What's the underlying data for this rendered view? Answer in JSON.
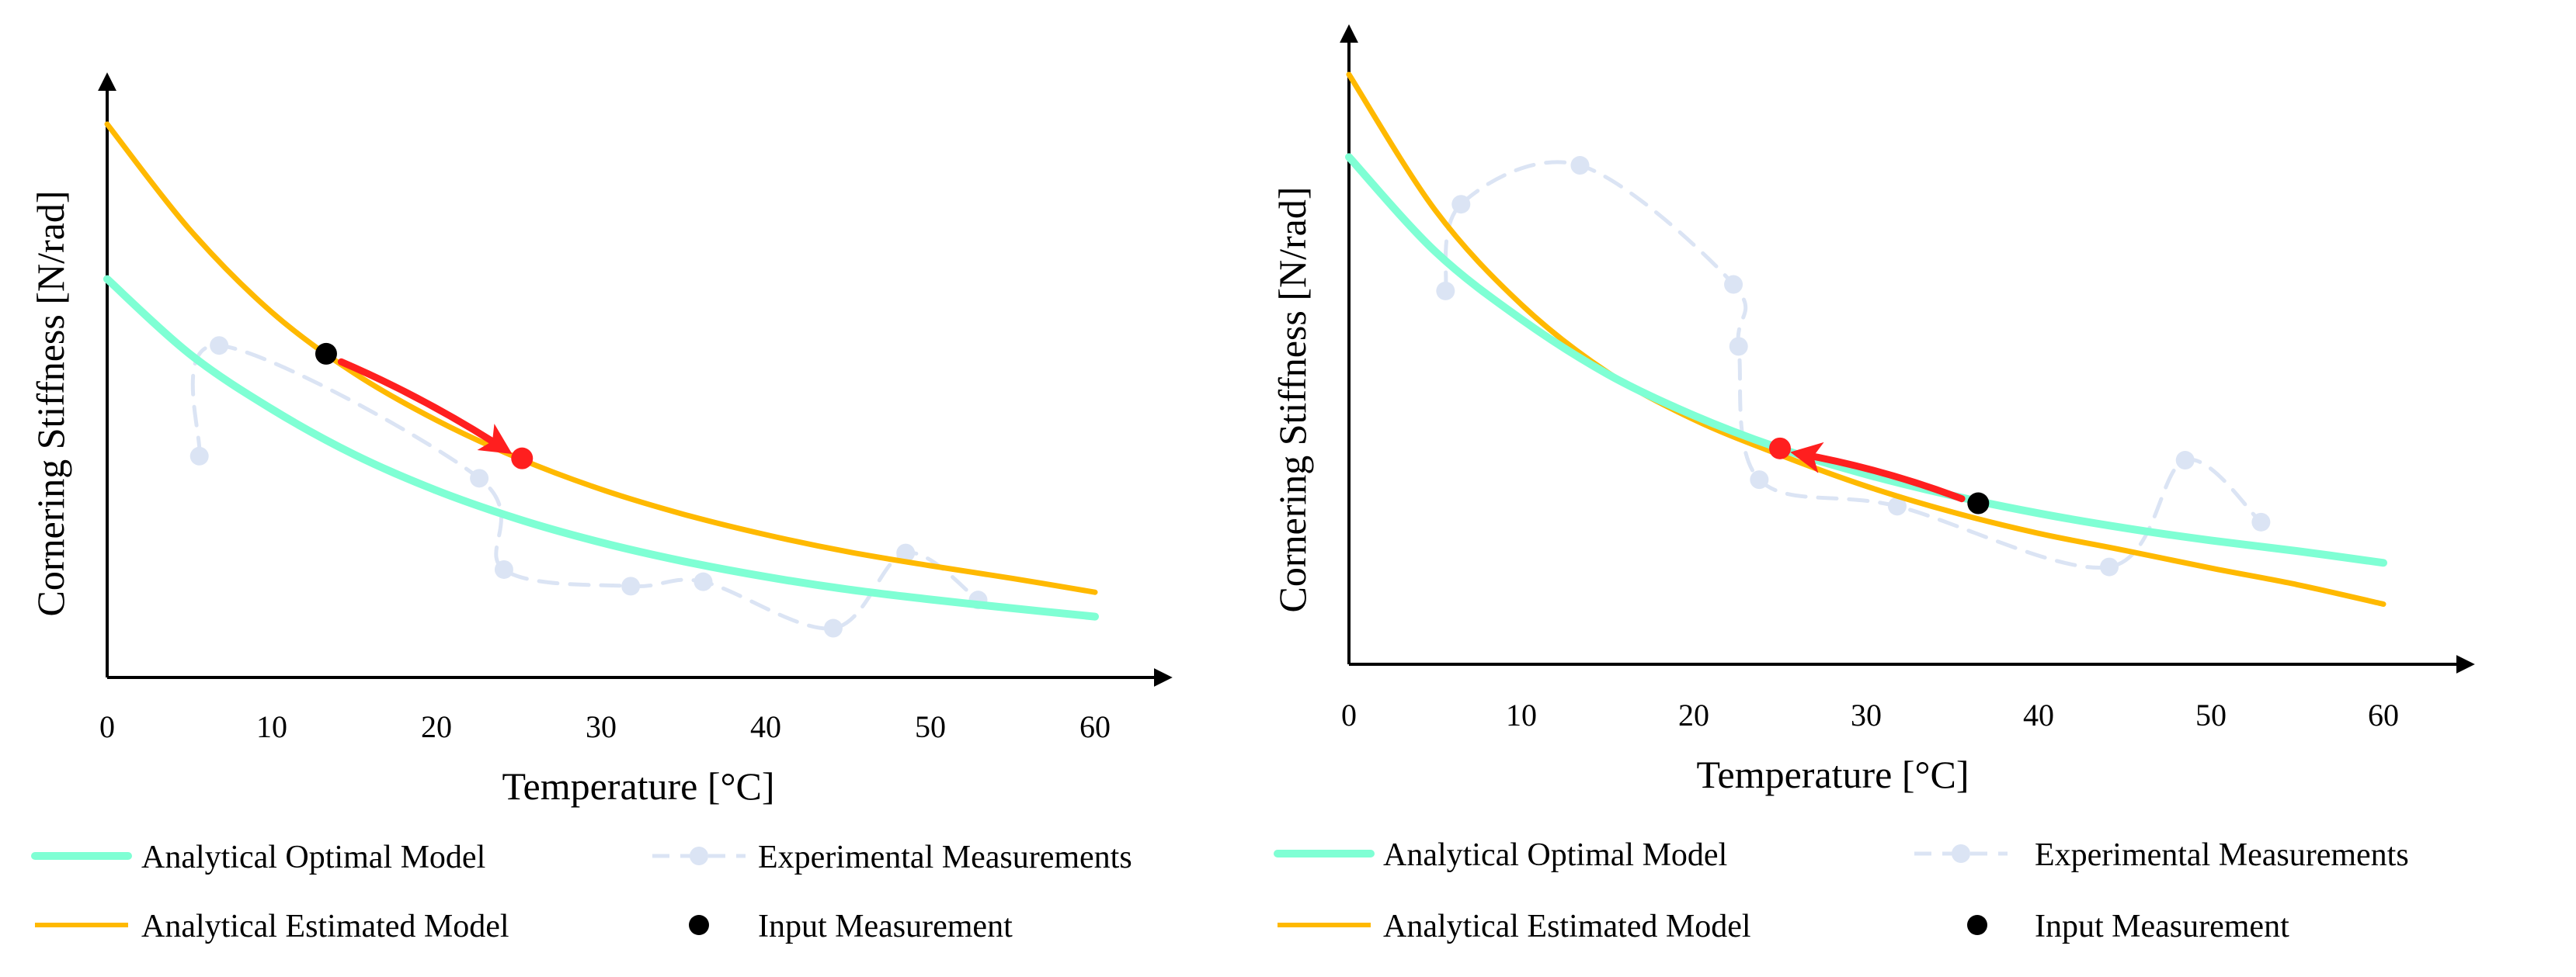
{
  "chart_data": [
    {
      "type": "line",
      "xlabel": "Temperature [°C]",
      "ylabel": "Cornering Stiffness [N/rad]",
      "xlim": [
        0,
        65
      ],
      "ylim": [
        0,
        100
      ],
      "xticks": [
        "0",
        "10",
        "20",
        "30",
        "40",
        "50",
        "60"
      ],
      "y_ticks_shown": false,
      "colors": {
        "optimal": "#7fffd4",
        "estimated": "#ffb900",
        "experimental": "#dbe4f4",
        "input": "#000000",
        "transition": "#ff1f1f"
      },
      "series": [
        {
          "name": "Analytical Optimal Model",
          "key": "optimal",
          "style": "solid",
          "x": [
            0,
            5,
            10,
            15,
            20,
            25,
            30,
            35,
            40,
            45,
            50,
            55,
            60
          ],
          "y": [
            72,
            58.5,
            48.5,
            40.3,
            33.8,
            28.6,
            24.4,
            21.0,
            18.2,
            15.9,
            14.1,
            12.5,
            11.0
          ]
        },
        {
          "name": "Analytical Estimated Model",
          "key": "estimated",
          "style": "solid",
          "x": [
            0,
            5,
            10,
            15,
            20,
            25,
            30,
            35,
            40,
            45,
            50,
            55,
            60
          ],
          "y": [
            100,
            81,
            66,
            55,
            46.5,
            39.6,
            34.0,
            29.5,
            25.8,
            22.7,
            20.2,
            17.9,
            15.4
          ]
        },
        {
          "name": "Experimental Measurements",
          "key": "experimental",
          "style": "dashed-markers",
          "x": [
            5.6,
            6.8,
            22.6,
            24.1,
            31.8,
            36.2,
            44.1,
            48.5,
            52.9
          ],
          "y": [
            40.0,
            60.0,
            36.0,
            19.5,
            16.5,
            17.3,
            8.9,
            22.5,
            14.0
          ]
        }
      ],
      "input_measurement": {
        "x": 13.3,
        "y": 58.5
      },
      "estimated_point": {
        "x": 25.2,
        "y": 39.6
      },
      "arrow": {
        "from": "input_measurement",
        "to": "estimated_point"
      },
      "legend": [
        {
          "key": "optimal",
          "label": "Analytical Optimal Model"
        },
        {
          "key": "experimental",
          "label": "Experimental Measurements"
        },
        {
          "key": "estimated",
          "label": "Analytical Estimated Model"
        },
        {
          "key": "input",
          "label": "Input Measurement"
        }
      ]
    },
    {
      "type": "line",
      "xlabel": "Temperature [°C]",
      "ylabel": "Cornering Stiffness [N/rad]",
      "xlim": [
        0,
        65
      ],
      "ylim": [
        0,
        100
      ],
      "xticks": [
        "0",
        "10",
        "20",
        "30",
        "40",
        "50",
        "60"
      ],
      "y_ticks_shown": false,
      "colors": {
        "optimal": "#7fffd4",
        "estimated": "#ffb900",
        "experimental": "#dbe4f4",
        "input": "#000000",
        "transition": "#ff1f1f"
      },
      "series": [
        {
          "name": "Analytical Optimal Model",
          "key": "optimal",
          "style": "solid",
          "x": [
            0,
            5,
            10,
            15,
            20,
            25,
            30,
            35,
            40,
            45,
            50,
            55,
            60
          ],
          "y": [
            86,
            70,
            58.5,
            49.2,
            42.2,
            36.6,
            32.2,
            28.6,
            25.6,
            23.1,
            21.0,
            19.2,
            17.2
          ]
        },
        {
          "name": "Analytical Estimated Model",
          "key": "estimated",
          "style": "solid",
          "x": [
            0,
            5,
            10,
            15,
            20,
            25,
            30,
            35,
            40,
            45,
            50,
            55,
            60
          ],
          "y": [
            100,
            77,
            61,
            49.5,
            41.5,
            35.5,
            30.2,
            25.8,
            22.2,
            19.3,
            16.3,
            13.5,
            10.2
          ]
        },
        {
          "name": "Experimental Measurements",
          "key": "experimental",
          "style": "dashed-markers",
          "x": [
            5.6,
            6.5,
            13.4,
            22.3,
            22.6,
            23.8,
            31.8,
            44.1,
            48.5,
            52.9
          ],
          "y": [
            63.3,
            78.0,
            84.6,
            64.4,
            53.9,
            31.3,
            26.8,
            16.5,
            34.6,
            24.1
          ]
        }
      ],
      "input_measurement": {
        "x": 36.5,
        "y": 27.3
      },
      "estimated_point": {
        "x": 25.0,
        "y": 36.6
      },
      "arrow": {
        "from": "input_measurement",
        "to": "estimated_point"
      },
      "legend": [
        {
          "key": "optimal",
          "label": "Analytical Optimal Model"
        },
        {
          "key": "experimental",
          "label": "Experimental Measurements"
        },
        {
          "key": "estimated",
          "label": "Analytical Estimated Model"
        },
        {
          "key": "input",
          "label": "Input Measurement"
        }
      ]
    }
  ]
}
